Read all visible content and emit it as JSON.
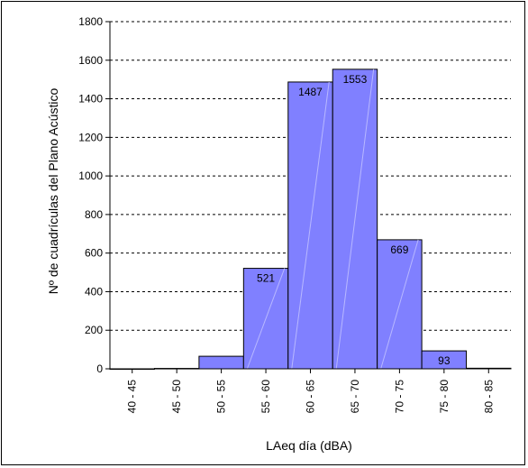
{
  "chart_data": {
    "type": "bar",
    "title": "",
    "xlabel": "LAeq día (dBA)",
    "ylabel": "Nº de cuadrículas del Plano Acústico",
    "categories": [
      "40 - 45",
      "45 - 50",
      "50 - 55",
      "55 - 60",
      "60 - 65",
      "65 - 70",
      "70 - 75",
      "75 - 80",
      "80 - 85"
    ],
    "values": [
      0,
      2,
      65,
      521,
      1487,
      1553,
      669,
      93,
      3
    ],
    "data_labels": [
      "",
      "",
      "",
      "521",
      "1487",
      "1553",
      "669",
      "93",
      ""
    ],
    "ylim": [
      0,
      1800
    ],
    "yticks": [
      0,
      200,
      400,
      600,
      800,
      1000,
      1200,
      1400,
      1600,
      1800
    ],
    "grid": "horizontal dashed",
    "bar_color": "#8080ff",
    "legend": "none"
  }
}
